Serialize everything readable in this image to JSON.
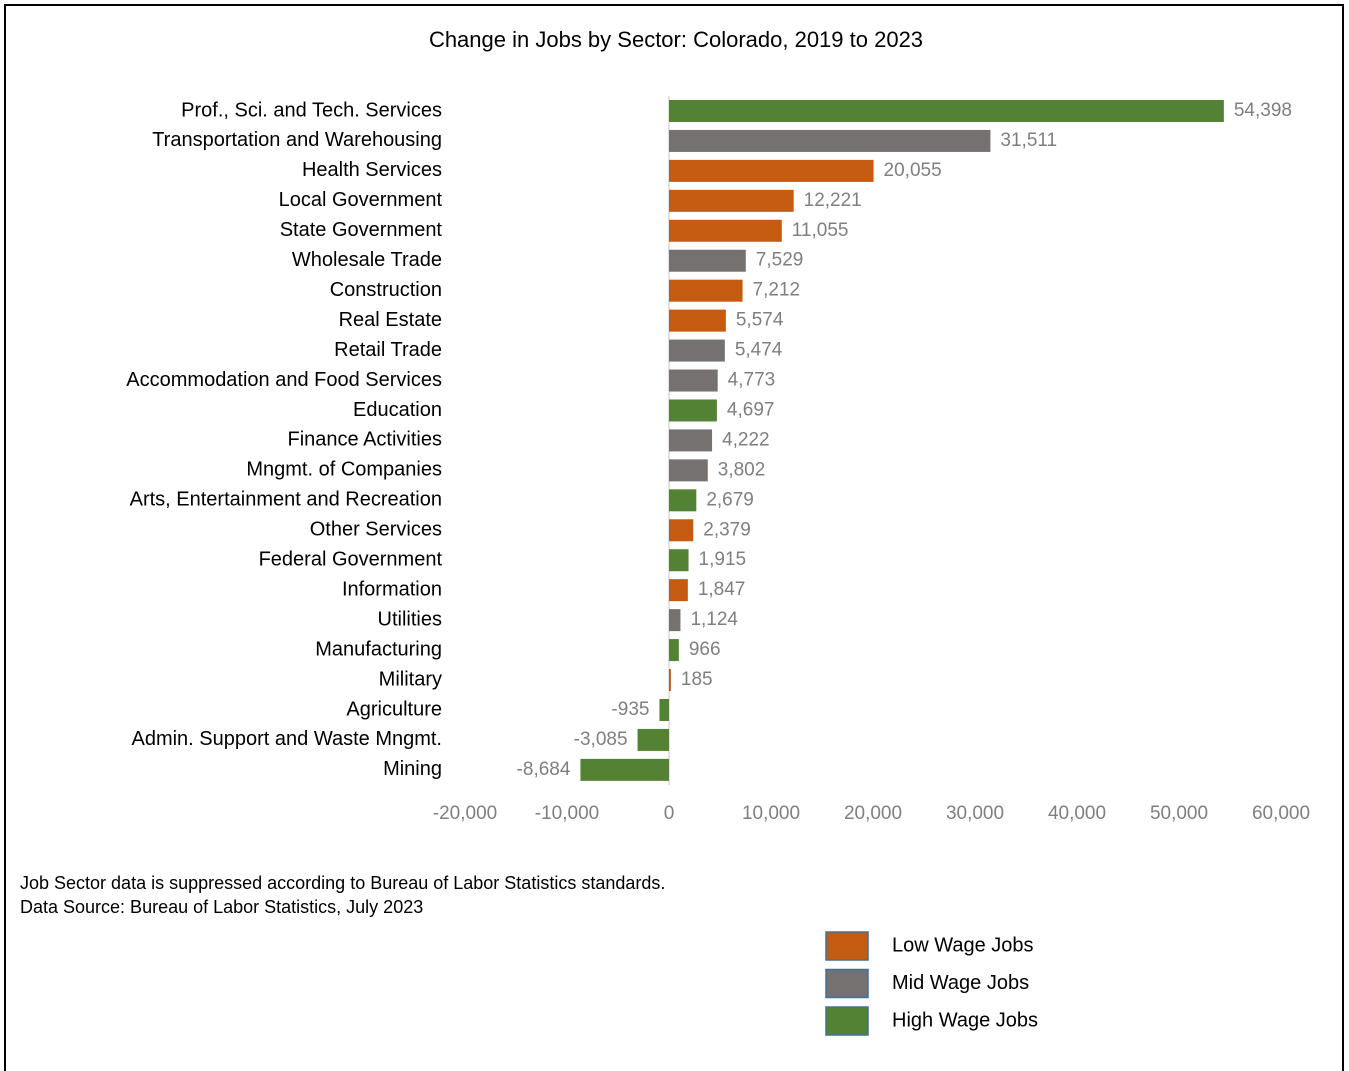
{
  "chart_data": {
    "type": "bar",
    "orientation": "horizontal",
    "title": "Change in Jobs by Sector: Colorado,  2019 to 2023",
    "categories": [
      "Prof., Sci. and Tech. Services",
      "Transportation and Warehousing",
      "Health Services",
      "Local Government",
      "State Government",
      "Wholesale Trade",
      "Construction",
      "Real Estate",
      "Retail Trade",
      "Accommodation and Food Services",
      "Education",
      "Finance Activities",
      "Mngmt. of Companies",
      "Arts, Entertainment and Recreation",
      "Other Services",
      "Federal Government",
      "Information",
      "Utilities",
      "Manufacturing",
      "Military",
      "Agriculture",
      "Admin. Support and Waste Mngmt.",
      "Mining"
    ],
    "values": [
      54398,
      31511,
      20055,
      12221,
      11055,
      7529,
      7212,
      5574,
      5474,
      4773,
      4697,
      4222,
      3802,
      2679,
      2379,
      1915,
      1847,
      1124,
      966,
      185,
      -935,
      -3085,
      -8684
    ],
    "value_labels": [
      "54,398",
      "31,511",
      "20,055",
      "12,221",
      "11,055",
      "7,529",
      "7,212",
      "5,574",
      "5,474",
      "4,773",
      "4,697",
      "4,222",
      "3,802",
      "2,679",
      "2,379",
      "1,915",
      "1,847",
      "1,124",
      "966",
      "185",
      "-935",
      "-3,085",
      "-8,684"
    ],
    "colors": [
      "#548235",
      "#767171",
      "#c55a11",
      "#c55a11",
      "#c55a11",
      "#767171",
      "#c55a11",
      "#c55a11",
      "#767171",
      "#767171",
      "#548235",
      "#767171",
      "#767171",
      "#548235",
      "#c55a11",
      "#548235",
      "#c55a11",
      "#767171",
      "#548235",
      "#c55a11",
      "#548235",
      "#548235",
      "#548235"
    ],
    "xlim": [
      -20000,
      60000
    ],
    "xticks": [
      {
        "value": -20000,
        "label": "-20,000"
      },
      {
        "value": -10000,
        "label": "-10,000"
      },
      0,
      {
        "value": 10000,
        "label": "10,000"
      },
      {
        "value": 20000,
        "label": "20,000"
      },
      {
        "value": 30000,
        "label": "30,000"
      },
      {
        "value": 40000,
        "label": "40,000"
      },
      {
        "value": 50000,
        "label": "50,000"
      },
      {
        "value": 60000,
        "label": "60,000"
      }
    ],
    "notes": [
      "Job Sector data is suppressed according to Bureau of Labor Statistics standards.",
      "Data Source: Bureau of Labor Statistics, July 2023"
    ],
    "legend": [
      {
        "name": "Low Wage Jobs",
        "color": "#c55a11"
      },
      {
        "name": "Mid Wage Jobs",
        "color": "#767171"
      },
      {
        "name": "High Wage Jobs",
        "color": "#548235"
      }
    ]
  }
}
